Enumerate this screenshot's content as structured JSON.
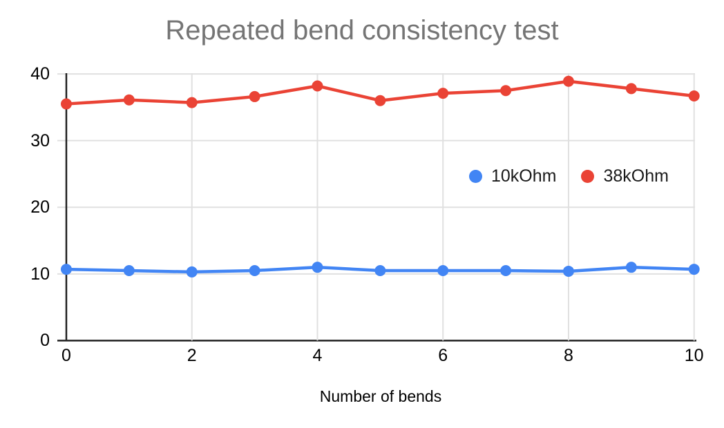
{
  "chart_data": {
    "type": "line",
    "title": "Repeated bend consistency test",
    "xlabel": "Number of bends",
    "ylabel": "",
    "x": [
      0,
      1,
      2,
      3,
      4,
      5,
      6,
      7,
      8,
      9,
      10
    ],
    "series": [
      {
        "name": "10kOhm",
        "color": "#4285F4",
        "values": [
          10.7,
          10.5,
          10.3,
          10.5,
          11.0,
          10.5,
          10.5,
          10.5,
          10.4,
          11.0,
          10.7
        ]
      },
      {
        "name": "38kOhm",
        "color": "#EA4335",
        "values": [
          35.5,
          36.1,
          35.7,
          36.6,
          38.2,
          36.0,
          37.1,
          37.5,
          38.9,
          37.8,
          36.7
        ]
      }
    ],
    "xlim": [
      0,
      10
    ],
    "ylim": [
      0,
      40
    ],
    "x_ticks": [
      "0",
      "2",
      "4",
      "6",
      "8",
      "10"
    ],
    "y_ticks": [
      "0",
      "10",
      "20",
      "30",
      "40"
    ],
    "grid": true,
    "legend_position": "center-right-overlay",
    "colors": {
      "title_text": "#757575",
      "tick_text": "#000000",
      "gridline": "#E0E0E0",
      "axis_line": "#212121"
    }
  }
}
